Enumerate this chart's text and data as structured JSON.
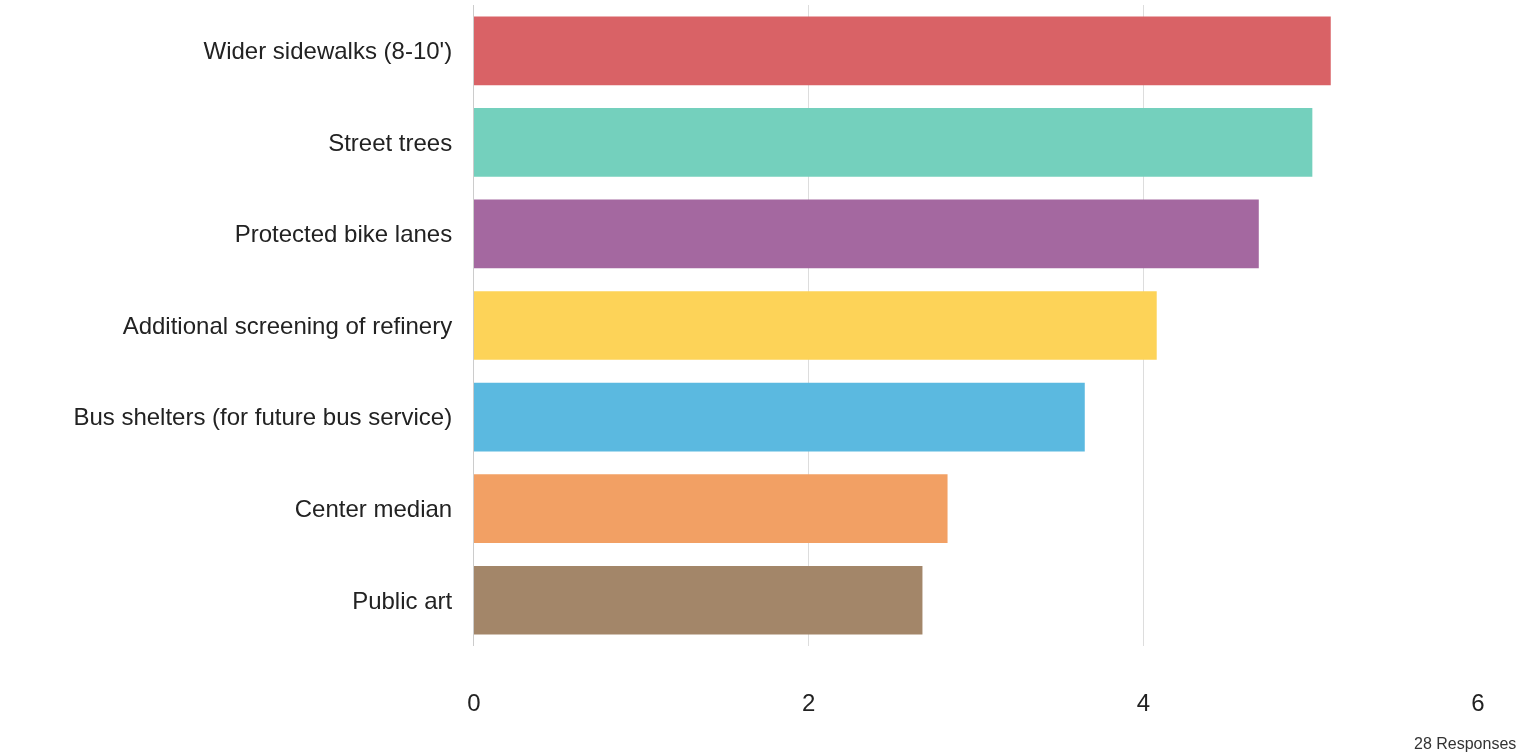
{
  "chart_data": {
    "type": "bar",
    "orientation": "horizontal",
    "categories": [
      "Wider sidewalks (8-10')",
      "Street trees",
      "Protected bike lanes",
      "Additional screening of refinery",
      "Bus shelters (for future bus service)",
      "Center median",
      "Public art"
    ],
    "values": [
      5.12,
      5.01,
      4.69,
      4.08,
      3.65,
      2.83,
      2.68
    ],
    "colors": [
      "#d96266",
      "#74d0bd",
      "#a468a0",
      "#fdd358",
      "#5bb9e0",
      "#f2a064",
      "#a38669"
    ],
    "xlim": [
      0,
      6
    ],
    "xticks": [
      0,
      2,
      4,
      6
    ],
    "grid": "x",
    "legend": false,
    "annotations": [
      "28 Responses"
    ]
  }
}
